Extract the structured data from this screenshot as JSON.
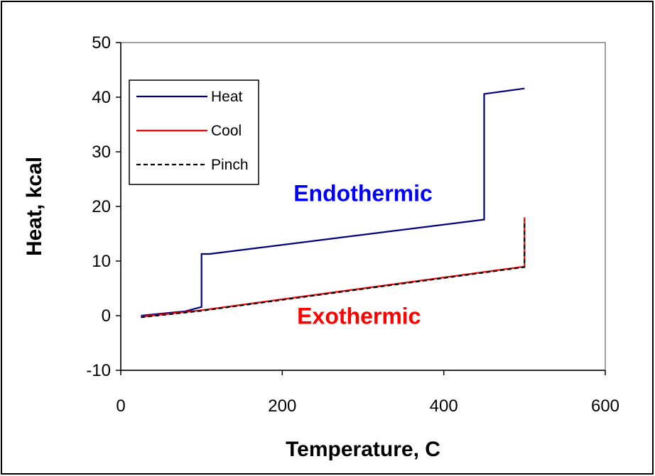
{
  "chart_data": {
    "type": "line",
    "title": "",
    "xlabel": "Temperature, C",
    "ylabel": "Heat, kcal",
    "xlim": [
      0,
      600
    ],
    "ylim": [
      -10,
      50
    ],
    "xticks": [
      0,
      200,
      400,
      600
    ],
    "yticks": [
      -10,
      0,
      10,
      20,
      30,
      40,
      50
    ],
    "grid": false,
    "legend_position": "top-left",
    "series": [
      {
        "name": "Heat",
        "color": "#000080",
        "dash": "solid",
        "x": [
          25,
          80,
          100,
          100,
          110,
          450,
          450,
          500
        ],
        "y": [
          0,
          0.8,
          1.6,
          11.3,
          11.3,
          17.6,
          40.6,
          41.6
        ]
      },
      {
        "name": "Cool",
        "color": "#ff0000",
        "dash": "solid",
        "x": [
          25,
          100,
          200,
          300,
          400,
          500,
          500
        ],
        "y": [
          -0.2,
          1.0,
          3.0,
          5.0,
          7.0,
          9.0,
          18.0
        ]
      },
      {
        "name": "Pinch",
        "color": "#000000",
        "dash": "dashed",
        "x": [
          25,
          100,
          200,
          300,
          400,
          500,
          500
        ],
        "y": [
          -0.3,
          0.9,
          2.9,
          4.9,
          6.9,
          8.9,
          17.5
        ]
      }
    ],
    "annotations": [
      {
        "text": "Endothermic",
        "color": "#0000ff",
        "x": 300,
        "y": 21
      },
      {
        "text": "Exothermic",
        "color": "#ff0000",
        "x": 295,
        "y": -1.5
      }
    ]
  }
}
